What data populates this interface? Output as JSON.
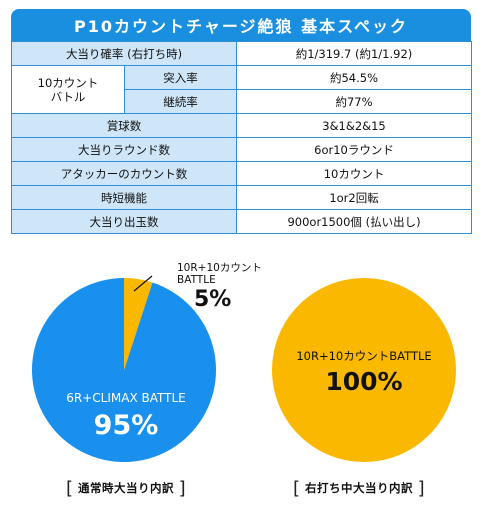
{
  "spec_table": {
    "title": "P10カウントチャージ絶狼 基本スペック",
    "rows": [
      {
        "label": "大当り確率 (右打ち時)",
        "value": "約1/319.7 (約1/1.92)"
      },
      {
        "label": "10カウント バトル",
        "sub_rows": [
          {
            "label": "突入率",
            "value": "約54.5%"
          },
          {
            "label": "継続率",
            "value": "約77%"
          }
        ]
      },
      {
        "label": "賞球数",
        "value": "3&1&2&15"
      },
      {
        "label": "大当りラウンド数",
        "value": "6or10ラウンド"
      },
      {
        "label": "アタッカーのカウント数",
        "value": "10カウント"
      },
      {
        "label": "時短機能",
        "value": "1or2回転"
      },
      {
        "label": "大当り出玉数",
        "value": "900or1500個 (払い出し)"
      }
    ]
  },
  "chart_data": [
    {
      "type": "pie",
      "title": "通常時大当り内訳",
      "slices": [
        {
          "label": "6R+CLIMAX BATTLE",
          "value": 95,
          "display": "95%",
          "color": "#1990ee"
        },
        {
          "label": "10R+10カウントBATTLE",
          "label_lines": [
            "10R+10カウント",
            "BATTLE"
          ],
          "value": 5,
          "display": "5%",
          "color": "#fbb800"
        }
      ]
    },
    {
      "type": "pie",
      "title": "右打ち中大当り内訳",
      "slices": [
        {
          "label": "10R+10カウントBATTLE",
          "value": 100,
          "display": "100%",
          "color": "#fbb800"
        }
      ]
    }
  ],
  "bracket": {
    "open": "[",
    "close": "]"
  }
}
